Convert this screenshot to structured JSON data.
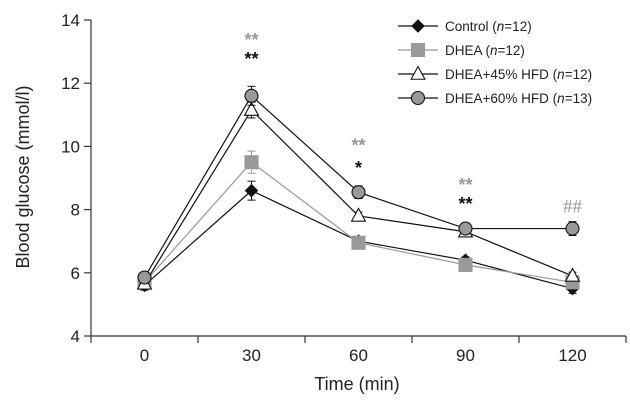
{
  "chart_data": {
    "type": "line",
    "xlabel": "Time (min)",
    "ylabel": "Blood glucose (mmol/l)",
    "x": [
      0,
      30,
      60,
      90,
      120
    ],
    "xticks": [
      "0",
      "30",
      "60",
      "90",
      "120"
    ],
    "yticks": [
      "4",
      "6",
      "8",
      "10",
      "12",
      "14"
    ],
    "xlim": [
      -15,
      135
    ],
    "ylim": [
      4,
      14
    ],
    "grid": false,
    "legend_position": "top-right",
    "series": [
      {
        "name": "Control",
        "n_label": "(n=12)",
        "marker": "diamond",
        "color": "#111111",
        "fill": "#111111",
        "values": [
          5.6,
          8.6,
          7.0,
          6.4,
          5.5
        ],
        "errors": [
          0.15,
          0.3,
          0.12,
          0.1,
          0.15
        ]
      },
      {
        "name": "DHEA",
        "n_label": "(n=12)",
        "marker": "square",
        "color": "#999999",
        "fill": "#999999",
        "values": [
          5.7,
          9.5,
          6.95,
          6.25,
          5.7
        ],
        "errors": [
          0.12,
          0.35,
          0.12,
          0.1,
          0.12
        ]
      },
      {
        "name": "DHEA+45% HFD",
        "n_label": "(n=12)",
        "marker": "triangle",
        "color": "#111111",
        "fill": "#ffffff",
        "values": [
          5.65,
          11.15,
          7.8,
          7.3,
          5.9
        ],
        "errors": [
          0.12,
          0.25,
          0.12,
          0.12,
          0.12
        ]
      },
      {
        "name": "DHEA+60% HFD",
        "n_label": "(n=13)",
        "marker": "circle",
        "color": "#111111",
        "fill": "#999999",
        "values": [
          5.85,
          11.6,
          8.55,
          7.4,
          7.4
        ],
        "errors": [
          0.15,
          0.3,
          0.2,
          0.12,
          0.22
        ]
      }
    ],
    "annotations": [
      {
        "x": 30,
        "y": 13.5,
        "text": "**",
        "color": "#999999"
      },
      {
        "x": 30,
        "y": 12.9,
        "text": "**",
        "color": "#111111"
      },
      {
        "x": 60,
        "y": 10.15,
        "text": "**",
        "color": "#999999"
      },
      {
        "x": 60,
        "y": 9.45,
        "text": "*",
        "color": "#111111"
      },
      {
        "x": 90,
        "y": 8.9,
        "text": "**",
        "color": "#999999"
      },
      {
        "x": 90,
        "y": 8.3,
        "text": "**",
        "color": "#111111"
      },
      {
        "x": 120,
        "y": 8.1,
        "text": "##",
        "color": "#999999"
      }
    ]
  }
}
